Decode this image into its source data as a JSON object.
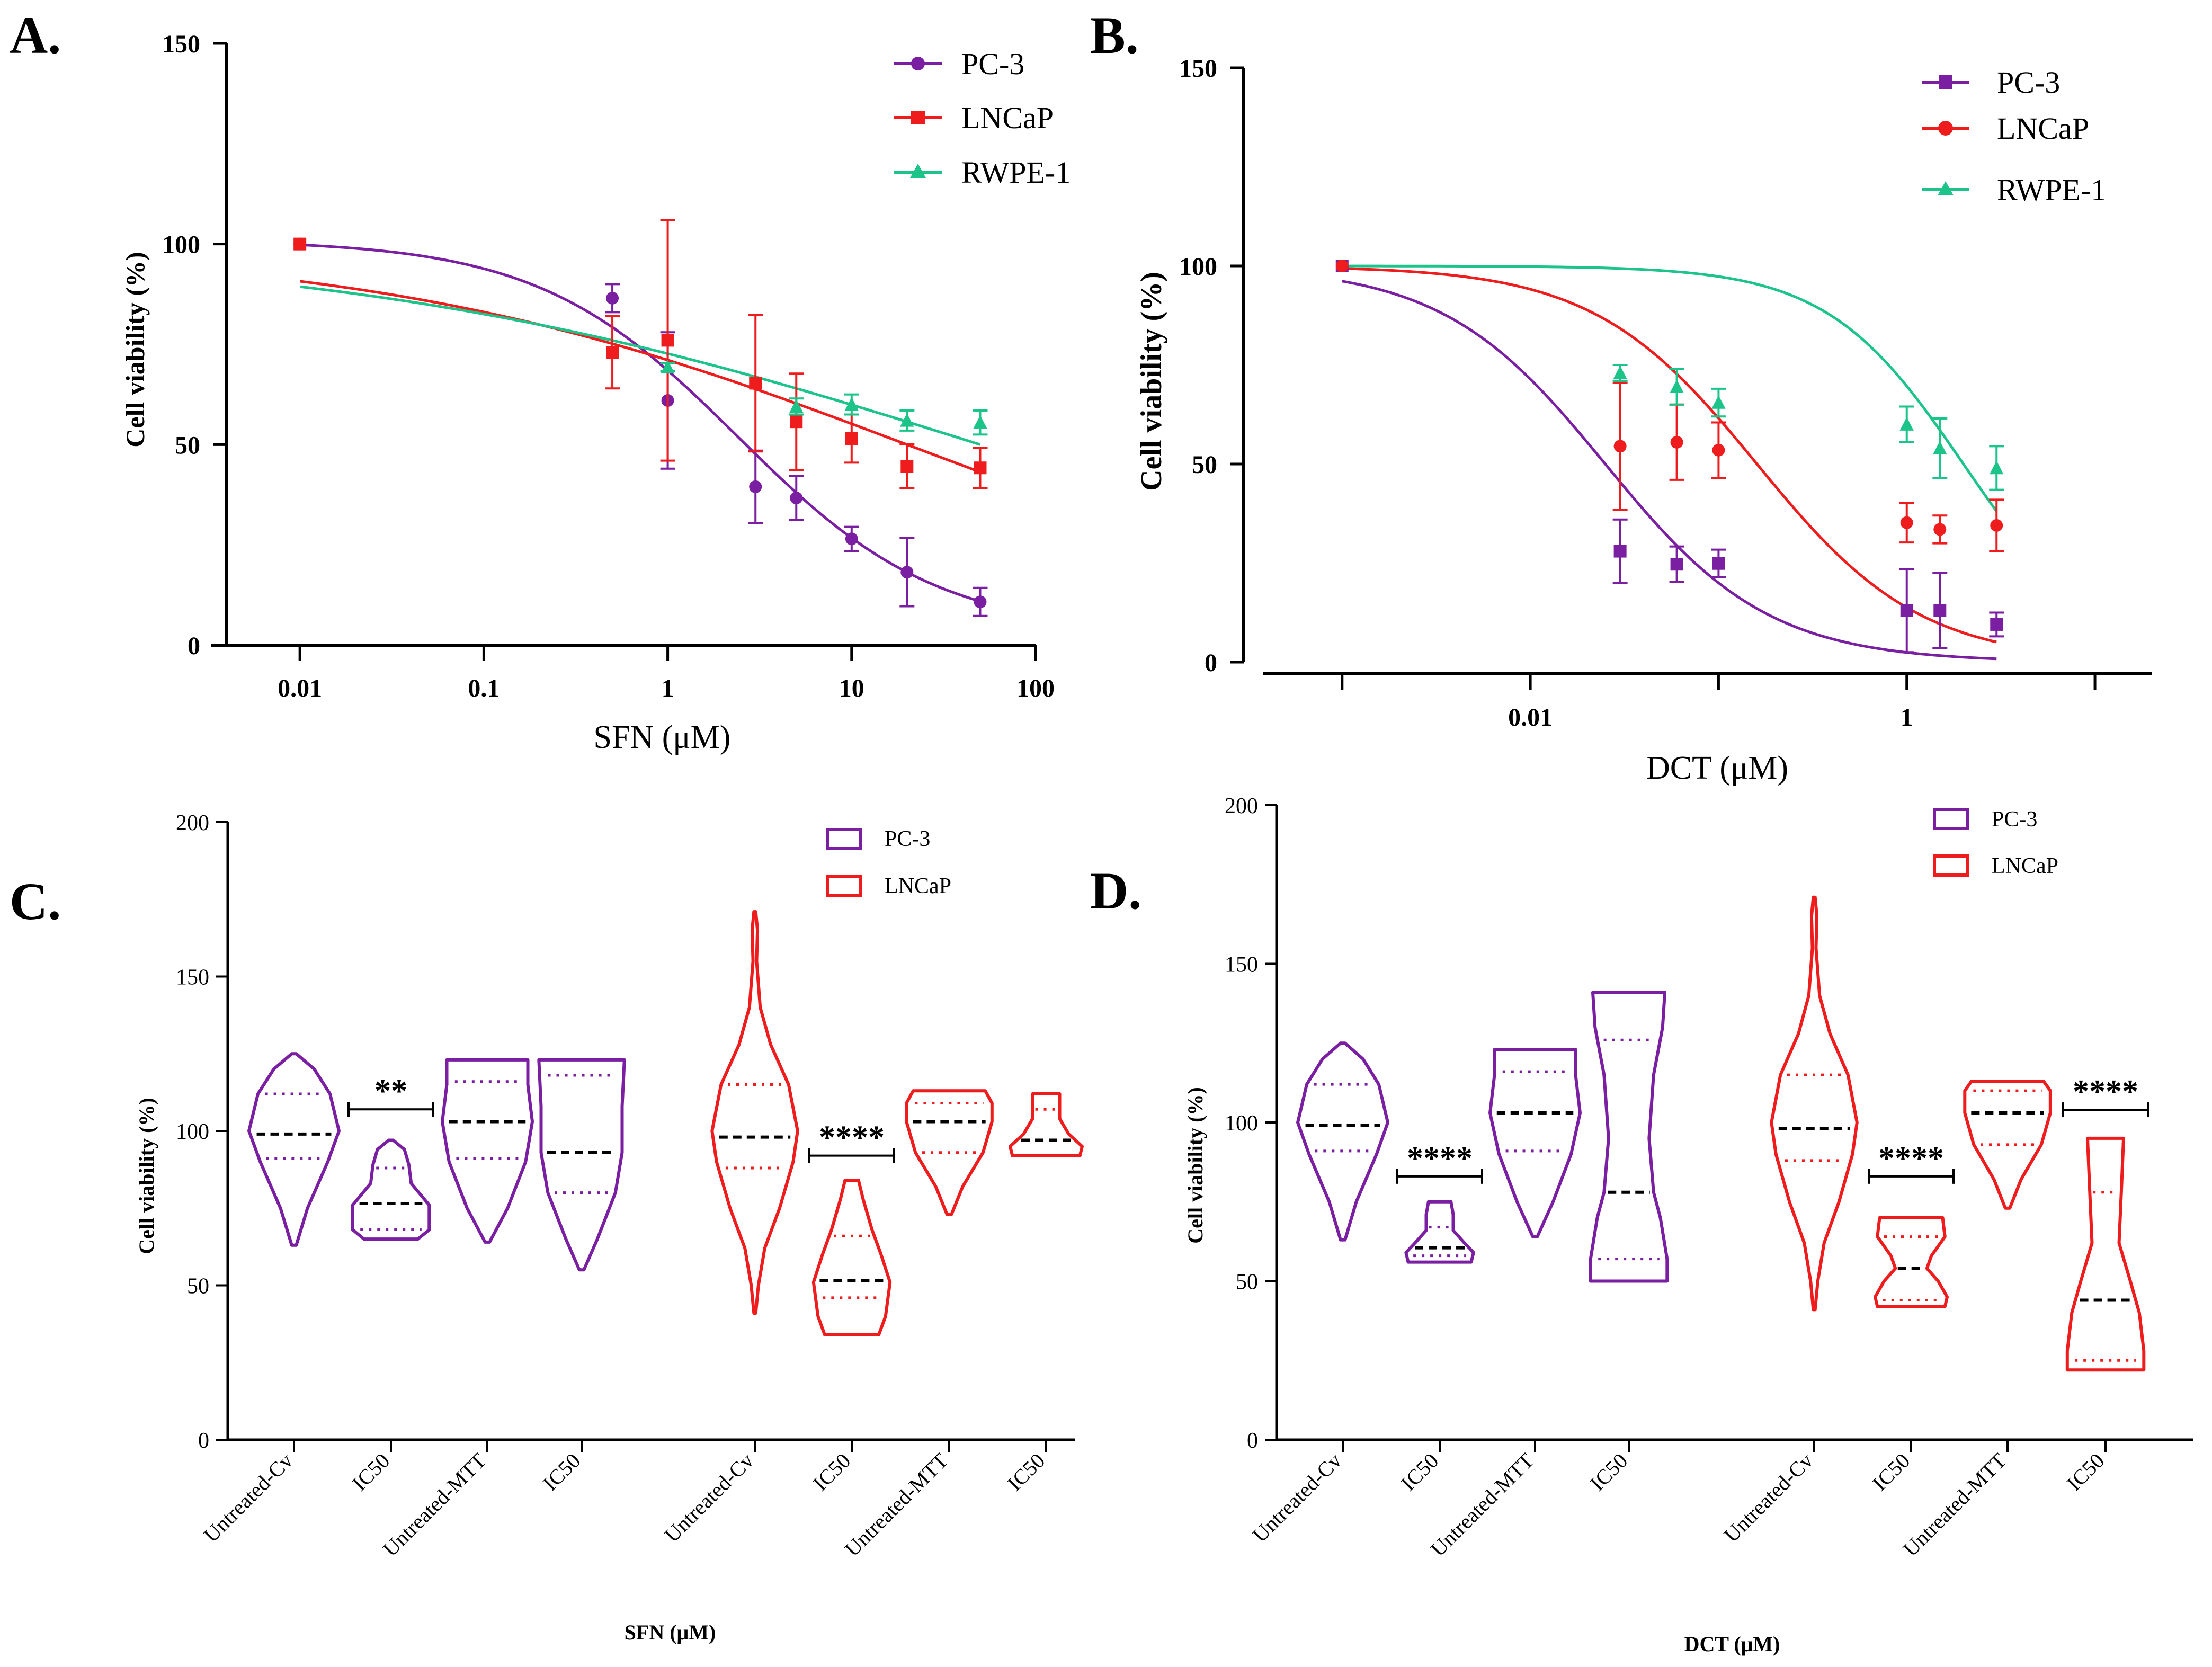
{
  "colors": {
    "pc3": "#7B1FA2",
    "lncap": "#EE1C1C",
    "rwpe1": "#1CC48A",
    "median": "#000000",
    "axis": "#000000"
  },
  "chart_data": [
    {
      "id": "A",
      "panel_label": "A.",
      "type": "line",
      "xscale": "log",
      "xlabel": "SFN (μM)",
      "ylabel": "Cell viability (%)",
      "xlim": [
        0.004,
        100
      ],
      "ylim": [
        0,
        150
      ],
      "xticks": [
        0.01,
        0.1,
        1,
        10,
        100
      ],
      "xtick_labels": [
        "0.01",
        "0.1",
        "1",
        "10",
        "100"
      ],
      "yticks": [
        0,
        50,
        100,
        150
      ],
      "ytick_labels": [
        "0",
        "50",
        "100",
        "150"
      ],
      "legend": {
        "position": "top-right",
        "entries": [
          "PC-3",
          "LNCaP",
          "RWPE-1"
        ]
      },
      "series": [
        {
          "name": "PC-3",
          "color_key": "pc3",
          "marker": "circle",
          "x": [
            0.01,
            0.5,
            1,
            3,
            5,
            10,
            20,
            50
          ],
          "y": [
            100,
            86.5,
            61,
            39.5,
            36.7,
            26.5,
            18.2,
            10.8
          ],
          "err": [
            0,
            3.5,
            17,
            9,
            5.5,
            3,
            8.5,
            3.5
          ],
          "fit": {
            "top": 101,
            "bottom": 3,
            "ic50": 2.4,
            "hill": 0.8,
            "xmin": 0.01,
            "xmax": 50
          }
        },
        {
          "name": "LNCaP",
          "color_key": "lncap",
          "marker": "square",
          "x": [
            0.01,
            0.5,
            1,
            3,
            5,
            10,
            20,
            50
          ],
          "y": [
            100,
            73,
            76,
            65.3,
            55.7,
            51.5,
            44.6,
            44.2
          ],
          "err": [
            0,
            9,
            30,
            17,
            12,
            6,
            5.5,
            5
          ],
          "fit": {
            "top": 100,
            "bottom": 0,
            "ic50": 20,
            "hill": 0.3,
            "xmin": 0.01,
            "xmax": 50
          }
        },
        {
          "name": "RWPE-1",
          "color_key": "rwpe1",
          "marker": "triangle",
          "x": [
            1,
            5,
            10,
            20,
            50
          ],
          "y": [
            69.3,
            59.5,
            60,
            56,
            55.5
          ],
          "err": [
            1,
            2,
            2.5,
            2.5,
            3
          ],
          "fit": {
            "top": 100,
            "bottom": 0,
            "ic50": 50,
            "hill": 0.25,
            "xmin": 0.01,
            "xmax": 50
          }
        }
      ]
    },
    {
      "id": "B",
      "panel_label": "B.",
      "type": "line",
      "xscale": "log",
      "xlabel": "DCT (μM)",
      "ylabel": "Cell viability (%)",
      "xlim": [
        0.0003,
        20
      ],
      "ylim": [
        0,
        150
      ],
      "xticks": [
        0.01,
        1
      ],
      "xtick_labels": [
        "0.01",
        "1"
      ],
      "minor_xticks": [
        0.001,
        0.1,
        10
      ],
      "yticks": [
        0,
        50,
        100,
        150
      ],
      "ytick_labels": [
        "0",
        "50",
        "100",
        "150"
      ],
      "legend": {
        "position": "top-right",
        "entries": [
          "PC-3",
          "LNCaP",
          "RWPE-1"
        ]
      },
      "series": [
        {
          "name": "PC-3",
          "color_key": "pc3",
          "marker": "square",
          "x": [
            0.001,
            0.03,
            0.06,
            0.1,
            1,
            1.5,
            3
          ],
          "y": [
            100,
            28,
            24.7,
            24.9,
            13,
            13,
            9.5
          ],
          "err": [
            0,
            8,
            4.5,
            3.5,
            10.5,
            9.5,
            3
          ],
          "fit": {
            "top": 100,
            "bottom": 0,
            "ic50": 0.025,
            "hill": 1.0,
            "xmin": 0.001,
            "xmax": 3
          }
        },
        {
          "name": "LNCaP",
          "color_key": "lncap",
          "marker": "circle",
          "x": [
            0.001,
            0.03,
            0.06,
            0.1,
            1,
            1.5,
            3
          ],
          "y": [
            100,
            54.5,
            55.5,
            53.5,
            35.2,
            33.5,
            34.5
          ],
          "err": [
            0,
            16,
            9.5,
            7,
            5,
            3.5,
            6.5
          ],
          "fit": {
            "top": 100,
            "bottom": 0,
            "ic50": 0.16,
            "hill": 1.0,
            "xmin": 0.001,
            "xmax": 3
          }
        },
        {
          "name": "RWPE-1",
          "color_key": "rwpe1",
          "marker": "triangle",
          "x": [
            0.03,
            0.06,
            0.1,
            1,
            1.5,
            3
          ],
          "y": [
            73,
            69.5,
            65.5,
            60,
            54,
            49
          ],
          "err": [
            2,
            4.5,
            3.5,
            4.5,
            7.5,
            5.5
          ],
          "fit": {
            "top": 100,
            "bottom": 0,
            "ic50": 2.0,
            "hill": 1.2,
            "xmin": 0.001,
            "xmax": 3
          }
        }
      ]
    },
    {
      "id": "C",
      "panel_label": "C.",
      "type": "violin",
      "xlabel": "SFN (μM)",
      "ylabel": "Cell viability (%)",
      "ylim": [
        0,
        200
      ],
      "yticks": [
        0,
        50,
        100,
        150,
        200
      ],
      "ytick_labels": [
        "0",
        "50",
        "100",
        "150",
        "200"
      ],
      "legend": {
        "position": "top-right",
        "entries": [
          "PC-3",
          "LNCaP"
        ]
      },
      "categories": [
        "Untreated-Cv",
        "IC50",
        "Untreated-MTT",
        "IC50",
        "Untreated-Cv",
        "IC50",
        "Untreated-MTT",
        "IC50"
      ],
      "violins": [
        {
          "group": "PC-3",
          "min": 63,
          "max": 125,
          "median": 99,
          "q1": 91,
          "q3": 112,
          "width_profile": [
            [
              63,
              0.05
            ],
            [
              75,
              0.3
            ],
            [
              90,
              0.75
            ],
            [
              100,
              1
            ],
            [
              112,
              0.8
            ],
            [
              120,
              0.45
            ],
            [
              125,
              0.05
            ]
          ]
        },
        {
          "group": "PC-3",
          "min": 65,
          "max": 97,
          "median": 76.5,
          "q1": 68,
          "q3": 88,
          "width_profile": [
            [
              65,
              0.6
            ],
            [
              68,
              0.85
            ],
            [
              76,
              0.85
            ],
            [
              83,
              0.45
            ],
            [
              89,
              0.4
            ],
            [
              94,
              0.3
            ],
            [
              97,
              0.05
            ]
          ]
        },
        {
          "group": "PC-3",
          "min": 64,
          "max": 123,
          "median": 103,
          "q1": 91,
          "q3": 116,
          "width_profile": [
            [
              64,
              0.05
            ],
            [
              75,
              0.45
            ],
            [
              90,
              0.85
            ],
            [
              103,
              1
            ],
            [
              115,
              0.9
            ],
            [
              123,
              0.9
            ]
          ]
        },
        {
          "group": "PC-3",
          "min": 55,
          "max": 123,
          "median": 93,
          "q1": 80,
          "q3": 118,
          "width_profile": [
            [
              55,
              0.05
            ],
            [
              65,
              0.35
            ],
            [
              80,
              0.75
            ],
            [
              93,
              0.9
            ],
            [
              108,
              0.9
            ],
            [
              123,
              0.95
            ]
          ]
        },
        {
          "group": "LNCaP",
          "min": 41,
          "max": 171,
          "median": 98,
          "q1": 88,
          "q3": 115,
          "width_profile": [
            [
              41,
              0.02
            ],
            [
              50,
              0.08
            ],
            [
              62,
              0.22
            ],
            [
              75,
              0.55
            ],
            [
              90,
              0.85
            ],
            [
              100,
              0.95
            ],
            [
              115,
              0.75
            ],
            [
              128,
              0.35
            ],
            [
              140,
              0.12
            ],
            [
              155,
              0.04
            ],
            [
              165,
              0.06
            ],
            [
              171,
              0.02
            ]
          ]
        },
        {
          "group": "LNCaP",
          "min": 34,
          "max": 84,
          "median": 51.5,
          "q1": 46,
          "q3": 66,
          "width_profile": [
            [
              34,
              0.6
            ],
            [
              40,
              0.75
            ],
            [
              51,
              0.85
            ],
            [
              60,
              0.65
            ],
            [
              68,
              0.45
            ],
            [
              78,
              0.25
            ],
            [
              84,
              0.15
            ]
          ]
        },
        {
          "group": "LNCaP",
          "min": 73,
          "max": 113,
          "median": 103,
          "q1": 93,
          "q3": 109,
          "width_profile": [
            [
              73,
              0.05
            ],
            [
              82,
              0.3
            ],
            [
              93,
              0.75
            ],
            [
              103,
              0.95
            ],
            [
              109,
              0.95
            ],
            [
              113,
              0.8
            ]
          ]
        },
        {
          "group": "LNCaP",
          "min": 92,
          "max": 112,
          "median": 97,
          "q1": 92,
          "q3": 107,
          "width_profile": [
            [
              92,
              0.75
            ],
            [
              95,
              0.8
            ],
            [
              99,
              0.5
            ],
            [
              104,
              0.3
            ],
            [
              112,
              0.3
            ]
          ]
        }
      ],
      "significance": [
        {
          "label": "**",
          "between": [
            1,
            1
          ],
          "y": 107
        },
        {
          "label": "****",
          "between": [
            5,
            5
          ],
          "y": 92
        }
      ]
    },
    {
      "id": "D",
      "panel_label": "D.",
      "type": "violin",
      "xlabel": "DCT (μM)",
      "ylabel": "Cell viability (%)",
      "ylim": [
        0,
        200
      ],
      "yticks": [
        0,
        50,
        100,
        150,
        200
      ],
      "ytick_labels": [
        "0",
        "50",
        "100",
        "150",
        "200"
      ],
      "legend": {
        "position": "top-right",
        "entries": [
          "PC-3",
          "LNCaP"
        ]
      },
      "categories": [
        "Untreated-Cv",
        "IC50",
        "Untreated-MTT",
        "IC50",
        "Untreated-Cv",
        "IC50",
        "Untreated-MTT",
        "IC50"
      ],
      "violins": [
        {
          "group": "PC-3",
          "min": 63,
          "max": 125,
          "median": 99,
          "q1": 91,
          "q3": 112,
          "width_profile": [
            [
              63,
              0.05
            ],
            [
              75,
              0.3
            ],
            [
              90,
              0.75
            ],
            [
              100,
              1
            ],
            [
              112,
              0.8
            ],
            [
              120,
              0.45
            ],
            [
              125,
              0.05
            ]
          ]
        },
        {
          "group": "PC-3",
          "min": 56,
          "max": 75,
          "median": 60.5,
          "q1": 58,
          "q3": 67,
          "width_profile": [
            [
              56,
              0.7
            ],
            [
              59,
              0.75
            ],
            [
              62,
              0.55
            ],
            [
              66,
              0.3
            ],
            [
              71,
              0.3
            ],
            [
              75,
              0.25
            ]
          ]
        },
        {
          "group": "PC-3",
          "min": 64,
          "max": 123,
          "median": 103,
          "q1": 91,
          "q3": 116,
          "width_profile": [
            [
              64,
              0.05
            ],
            [
              75,
              0.4
            ],
            [
              90,
              0.8
            ],
            [
              103,
              1
            ],
            [
              115,
              0.9
            ],
            [
              123,
              0.9
            ]
          ]
        },
        {
          "group": "PC-3",
          "min": 50,
          "max": 141,
          "median": 78,
          "q1": 57,
          "q3": 126,
          "width_profile": [
            [
              50,
              0.85
            ],
            [
              57,
              0.85
            ],
            [
              70,
              0.7
            ],
            [
              78,
              0.55
            ],
            [
              95,
              0.45
            ],
            [
              115,
              0.55
            ],
            [
              130,
              0.75
            ],
            [
              141,
              0.8
            ]
          ]
        },
        {
          "group": "LNCaP",
          "min": 41,
          "max": 171,
          "median": 98,
          "q1": 88,
          "q3": 115,
          "width_profile": [
            [
              41,
              0.02
            ],
            [
              50,
              0.08
            ],
            [
              62,
              0.22
            ],
            [
              75,
              0.55
            ],
            [
              90,
              0.85
            ],
            [
              100,
              0.95
            ],
            [
              115,
              0.75
            ],
            [
              128,
              0.35
            ],
            [
              140,
              0.12
            ],
            [
              155,
              0.04
            ],
            [
              165,
              0.06
            ],
            [
              171,
              0.02
            ]
          ]
        },
        {
          "group": "LNCaP",
          "min": 42,
          "max": 70,
          "median": 54,
          "q1": 44,
          "q3": 64,
          "width_profile": [
            [
              42,
              0.75
            ],
            [
              45,
              0.8
            ],
            [
              50,
              0.6
            ],
            [
              54,
              0.35
            ],
            [
              58,
              0.45
            ],
            [
              64,
              0.75
            ],
            [
              70,
              0.7
            ]
          ]
        },
        {
          "group": "LNCaP",
          "min": 73,
          "max": 113,
          "median": 103,
          "q1": 93,
          "q3": 110,
          "width_profile": [
            [
              73,
              0.05
            ],
            [
              82,
              0.3
            ],
            [
              93,
              0.75
            ],
            [
              103,
              0.95
            ],
            [
              110,
              0.95
            ],
            [
              113,
              0.8
            ]
          ]
        },
        {
          "group": "LNCaP",
          "min": 22,
          "max": 95,
          "median": 44,
          "q1": 25,
          "q3": 78,
          "width_profile": [
            [
              22,
              0.85
            ],
            [
              28,
              0.85
            ],
            [
              40,
              0.75
            ],
            [
              50,
              0.55
            ],
            [
              62,
              0.3
            ],
            [
              78,
              0.35
            ],
            [
              95,
              0.4
            ]
          ]
        }
      ],
      "significance": [
        {
          "label": "****",
          "between": [
            1,
            1
          ],
          "y": 83
        },
        {
          "label": "****",
          "between": [
            5,
            5
          ],
          "y": 83
        },
        {
          "label": "****",
          "between": [
            7,
            7
          ],
          "y": 104
        }
      ]
    }
  ]
}
